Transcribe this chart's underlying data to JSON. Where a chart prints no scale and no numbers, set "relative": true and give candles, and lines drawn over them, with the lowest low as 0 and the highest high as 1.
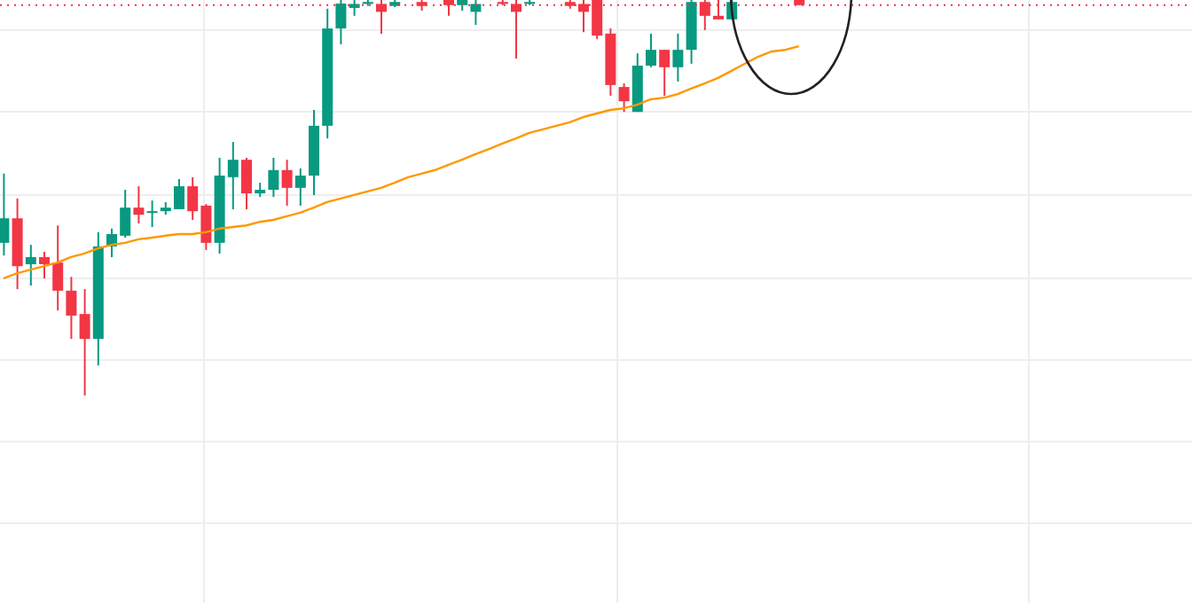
{
  "chart_data": {
    "type": "candlestick",
    "relative": true,
    "grid": true,
    "legend": false,
    "categories": [
      null,
      null,
      null,
      null,
      null,
      null,
      null,
      null,
      null,
      null,
      null,
      null,
      null,
      null,
      null,
      null,
      null,
      null,
      null,
      null,
      null,
      null,
      null,
      null,
      null,
      null,
      null,
      null,
      null,
      null,
      null,
      null,
      null,
      null,
      null,
      null,
      null,
      null,
      null,
      null,
      null,
      null,
      null,
      null,
      null,
      null,
      null,
      null,
      null,
      null,
      null,
      null,
      null,
      null,
      null,
      null,
      null,
      null,
      null,
      null
    ],
    "series": [
      {
        "type": "candlestick",
        "ohlc": [
          [
            0.386,
            0.561,
            0.354,
            0.448
          ],
          [
            0.448,
            0.498,
            0.269,
            0.327
          ],
          [
            0.332,
            0.381,
            0.278,
            0.35
          ],
          [
            0.35,
            0.363,
            0.296,
            0.332
          ],
          [
            0.336,
            0.43,
            0.215,
            0.265
          ],
          [
            0.265,
            0.3,
            0.143,
            0.202
          ],
          [
            0.206,
            0.269,
            0,
            0.143
          ],
          [
            0.143,
            0.413,
            0.076,
            0.377
          ],
          [
            0.377,
            0.422,
            0.35,
            0.408
          ],
          [
            0.404,
            0.52,
            0.399,
            0.475
          ],
          [
            0.475,
            0.529,
            0.435,
            0.457
          ],
          [
            0.462,
            0.493,
            0.426,
            0.466
          ],
          [
            0.466,
            0.489,
            0.457,
            0.475
          ],
          [
            0.471,
            0.547,
            0.471,
            0.529
          ],
          [
            0.529,
            0.552,
            0.444,
            0.466
          ],
          [
            0.48,
            0.484,
            0.368,
            0.386
          ],
          [
            0.386,
            0.601,
            0.359,
            0.556
          ],
          [
            0.552,
            0.641,
            0.471,
            0.596
          ],
          [
            0.596,
            0.601,
            0.471,
            0.511
          ],
          [
            0.511,
            0.538,
            0.502,
            0.52
          ],
          [
            0.52,
            0.601,
            0.502,
            0.57
          ],
          [
            0.57,
            0.596,
            0.48,
            0.525
          ],
          [
            0.525,
            0.574,
            0.48,
            0.556
          ],
          [
            0.556,
            0.722,
            0.507,
            0.682
          ],
          [
            0.682,
            0.978,
            0.65,
            0.928
          ],
          [
            0.928,
            1,
            0.888,
            0.991
          ],
          [
            0.98,
            1,
            0.96,
            0.99
          ],
          [
            0.99,
            1,
            0.985,
            0.995
          ],
          [
            0.99,
            1,
            0.915,
            0.97
          ],
          [
            0.985,
            1,
            0.982,
            0.995
          ],
          null,
          [
            0.995,
            1,
            0.973,
            0.985
          ],
          null,
          [
            1,
            1,
            0.96,
            0.987
          ],
          [
            0.987,
            1,
            0.973,
            1
          ],
          [
            0.97,
            1,
            0.937,
            0.99
          ],
          null,
          [
            0.995,
            1,
            0.987,
            0.99
          ],
          [
            0.99,
            1,
            0.852,
            0.97
          ],
          [
            0.99,
            1,
            0.987,
            0.995
          ],
          null,
          null,
          [
            0.995,
            1,
            0.978,
            0.985
          ],
          [
            0.99,
            1,
            0.919,
            0.97
          ],
          [
            1,
            1,
            0.901,
            0.91
          ],
          [
            0.915,
            0.928,
            0.758,
            0.785
          ],
          [
            0.78,
            0.789,
            0.717,
            0.744
          ],
          [
            0.717,
            0.865,
            0.717,
            0.834
          ],
          [
            0.834,
            0.915,
            0.83,
            0.874
          ],
          [
            0.874,
            0.874,
            0.758,
            0.83
          ],
          [
            0.83,
            0.915,
            0.794,
            0.874
          ],
          [
            0.874,
            1,
            0.839,
            0.995
          ],
          [
            0.995,
            1,
            0.924,
            0.96
          ],
          [
            0.96,
            1,
            0.951,
            0.951
          ],
          [
            0.951,
            1,
            0.951,
            0.995
          ],
          null,
          null,
          null,
          null,
          [
            1,
            1,
            0.987,
            0.987
          ]
        ],
        "colors": [
          "#089981",
          "#f23645",
          "#089981",
          "#f23645",
          "#f23645",
          "#f23645",
          "#f23645",
          "#089981",
          "#089981",
          "#089981",
          "#f23645",
          "#089981",
          "#089981",
          "#089981",
          "#f23645",
          "#f23645",
          "#089981",
          "#089981",
          "#f23645",
          "#089981",
          "#089981",
          "#f23645",
          "#089981",
          "#089981",
          "#089981",
          "#089981",
          "#089981",
          "#089981",
          "#f23645",
          "#089981",
          null,
          "#f23645",
          null,
          "#f23645",
          "#089981",
          "#089981",
          null,
          "#f23645",
          "#f23645",
          "#089981",
          null,
          null,
          "#f23645",
          "#f23645",
          "#f23645",
          "#f23645",
          "#f23645",
          "#089981",
          "#089981",
          "#f23645",
          "#089981",
          "#089981",
          "#f23645",
          "#f23645",
          "#089981",
          null,
          null,
          null,
          null,
          "#f23645"
        ]
      },
      {
        "type": "line",
        "color": "#ff9800",
        "values": [
          0.296,
          0.309,
          0.318,
          0.327,
          0.336,
          0.35,
          0.359,
          0.372,
          0.381,
          0.386,
          0.395,
          0.399,
          0.404,
          0.408,
          0.408,
          0.413,
          0.422,
          0.426,
          0.43,
          0.439,
          0.444,
          0.453,
          0.462,
          0.475,
          0.489,
          0.498,
          0.507,
          0.516,
          0.525,
          0.538,
          0.552,
          0.561,
          0.57,
          0.583,
          0.596,
          0.61,
          0.623,
          0.637,
          0.65,
          0.664,
          0.673,
          0.682,
          0.691,
          0.704,
          0.713,
          0.722,
          0.726,
          0.735,
          0.749,
          0.753,
          0.762,
          0.776,
          0.789,
          0.803,
          0.821,
          0.839,
          0.857,
          0.87,
          0.874,
          0.883
        ]
      }
    ],
    "ref_lines": [
      {
        "axis": "y",
        "value": 0.987,
        "color": "#f23645",
        "line_style": "dotted"
      }
    ]
  }
}
